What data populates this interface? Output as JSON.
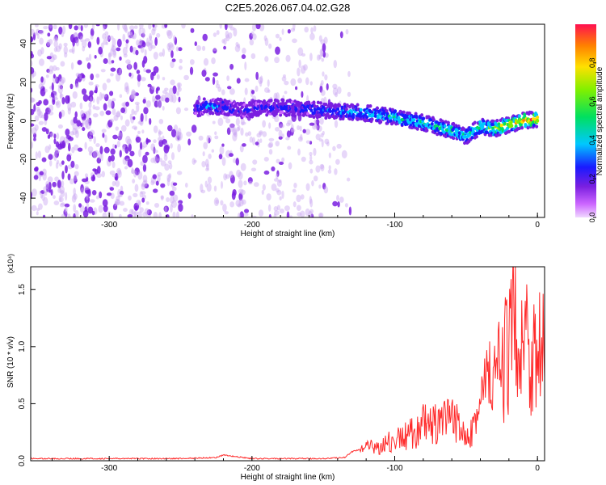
{
  "figure_title": "C2E5.2026.067.04.02.G28",
  "colors": {
    "snr_line": "#ff2a2a",
    "spectrogram_weak": "#c9a7f2",
    "spectrogram_mid": "#7a1fe0",
    "spectrogram_core": "#22c6c8",
    "spectrogram_peak": "#ff3030"
  },
  "chart_data": [
    {
      "type": "heatmap",
      "title": "C2E5.2026.067.04.02.G28",
      "xlabel": "Height of straight line (km)",
      "ylabel": "Frequency (Hz)",
      "xlim": [
        -355,
        5
      ],
      "ylim": [
        -50,
        50
      ],
      "x_ticks": [
        -300,
        -200,
        -100,
        0
      ],
      "y_ticks": [
        -40,
        -20,
        0,
        20,
        40
      ],
      "colorbar": {
        "label": "Normalized spectral amplitude",
        "range": [
          0,
          1
        ],
        "ticks": [
          0.0,
          0.2,
          0.4,
          0.6,
          0.8
        ],
        "colormap": "rainbow (magenta-blue-cyan-green-yellow-red)"
      },
      "ridge": {
        "description": "dominant signal track",
        "x": [
          -240,
          -230,
          -220,
          -210,
          -200,
          -180,
          -160,
          -140,
          -120,
          -100,
          -80,
          -60,
          -50,
          -40,
          -30,
          -20,
          -10,
          0
        ],
        "frequency": [
          6,
          8,
          7,
          5,
          6,
          7,
          6,
          5,
          4,
          2,
          -1,
          -5,
          -8,
          -3,
          -4,
          -2,
          0,
          1
        ],
        "amplitude": [
          0.3,
          0.4,
          0.35,
          0.3,
          0.3,
          0.3,
          0.35,
          0.4,
          0.45,
          0.5,
          0.5,
          0.55,
          0.5,
          0.55,
          0.7,
          0.8,
          0.9,
          0.85
        ]
      },
      "grid": false
    },
    {
      "type": "line",
      "title": "",
      "xlabel": "Height of straight line (km)",
      "ylabel": "SNR (10 * v/v)",
      "y_multiplier": "(x10⁴)",
      "xlim": [
        -355,
        5
      ],
      "ylim": [
        0,
        1.7
      ],
      "x_ticks": [
        -300,
        -200,
        -100,
        0
      ],
      "y_ticks": [
        0.0,
        0.5,
        1.0,
        1.5
      ],
      "series": [
        {
          "x": [
            -355,
            -300,
            -250,
            -225,
            -220,
            -200,
            -150,
            -135,
            -130,
            -120,
            -110,
            -100,
            -90,
            -80,
            -70,
            -60,
            -50,
            -45,
            -40,
            -35,
            -30,
            -25,
            -20,
            -15,
            -10,
            -5,
            0,
            5
          ],
          "values": [
            0.02,
            0.02,
            0.02,
            0.03,
            0.05,
            0.02,
            0.02,
            0.03,
            0.08,
            0.12,
            0.15,
            0.2,
            0.25,
            0.35,
            0.35,
            0.4,
            0.3,
            0.35,
            0.55,
            0.8,
            0.8,
            0.9,
            1.1,
            1.4,
            1.3,
            1.1,
            1.1,
            1.05
          ]
        }
      ],
      "grid": false
    }
  ]
}
